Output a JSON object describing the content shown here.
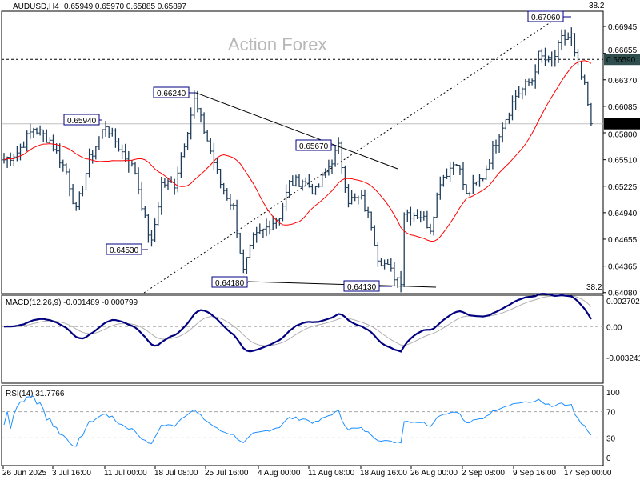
{
  "header": {
    "symbol": "AUDUSD,H4",
    "values": "0.65949 0.65970 0.65885 0.65897",
    "watermark": "Action Forex",
    "fib_top": "38.2",
    "fib_bottom": "38.2"
  },
  "chart_data": {
    "type": "ohlc",
    "title": "AUDUSD,H4",
    "ylim": [
      0.6408,
      0.6706
    ],
    "price_ticks": [
      "0.66945",
      "0.66655",
      "0.66370",
      "0.66085",
      "0.65800",
      "0.65510",
      "0.65225",
      "0.64940",
      "0.64655",
      "0.64365",
      "0.64080"
    ],
    "current_price": "0.65897",
    "level_line": "0.66590",
    "bars": 180,
    "close_keypoints": [
      [
        0,
        0.6551
      ],
      [
        4,
        0.6559
      ],
      [
        9,
        0.6585
      ],
      [
        14,
        0.6572
      ],
      [
        19,
        0.6538
      ],
      [
        22,
        0.6495
      ],
      [
        26,
        0.6551
      ],
      [
        31,
        0.6589
      ],
      [
        36,
        0.6559
      ],
      [
        40,
        0.6538
      ],
      [
        43,
        0.6486
      ],
      [
        45,
        0.646
      ],
      [
        48,
        0.6525
      ],
      [
        52,
        0.6525
      ],
      [
        56,
        0.6585
      ],
      [
        58,
        0.6615
      ],
      [
        62,
        0.6572
      ],
      [
        66,
        0.6525
      ],
      [
        70,
        0.6499
      ],
      [
        73,
        0.643
      ],
      [
        76,
        0.6465
      ],
      [
        80,
        0.6478
      ],
      [
        84,
        0.6491
      ],
      [
        87,
        0.6525
      ],
      [
        91,
        0.6529
      ],
      [
        95,
        0.6516
      ],
      [
        100,
        0.6551
      ],
      [
        102,
        0.6564
      ],
      [
        105,
        0.6508
      ],
      [
        109,
        0.6508
      ],
      [
        112,
        0.6482
      ],
      [
        114,
        0.6447
      ],
      [
        119,
        0.6426
      ],
      [
        121,
        0.6422
      ],
      [
        122,
        0.6495
      ],
      [
        127,
        0.6491
      ],
      [
        130,
        0.6478
      ],
      [
        133,
        0.6529
      ],
      [
        138,
        0.6551
      ],
      [
        141,
        0.6512
      ],
      [
        146,
        0.6533
      ],
      [
        151,
        0.6581
      ],
      [
        156,
        0.662
      ],
      [
        161,
        0.6637
      ],
      [
        163,
        0.6663
      ],
      [
        167,
        0.6654
      ],
      [
        170,
        0.668
      ],
      [
        173,
        0.6684
      ],
      [
        174,
        0.6663
      ],
      [
        177,
        0.6628
      ],
      [
        179,
        0.65897
      ]
    ],
    "annotations": [
      "0.65940",
      "0.66240",
      "0.64530",
      "0.64180",
      "0.65670",
      "0.64130",
      "0.67060"
    ],
    "time_labels": [
      "26 Jun 2025",
      "3 Jul 16:00",
      "11 Jul 00:00",
      "18 Jul 08:00",
      "25 Jul 16:00",
      "4 Aug 00:00",
      "11 Aug 08:00",
      "18 Aug 16:00",
      "26 Aug 00:00",
      "2 Sep 08:00",
      "9 Sep 16:00",
      "17 Sep 00:00"
    ],
    "macd": {
      "label": "MACD(12,26,9) -0.001489 -0.000799",
      "ticks": [
        "0.002702",
        "0.00",
        "-0.003241"
      ],
      "range": [
        -0.003241,
        0.002702
      ]
    },
    "rsi": {
      "label": "RSI(14) 31.7766",
      "ticks": [
        "100",
        "70",
        "30",
        "0"
      ],
      "range": [
        0,
        100
      ]
    },
    "colors": {
      "bars": "#1f3d5a",
      "ma": "#ff0000",
      "macd": "#000080",
      "signal": "#b0b0b0",
      "rsi": "#1e90ff"
    }
  }
}
